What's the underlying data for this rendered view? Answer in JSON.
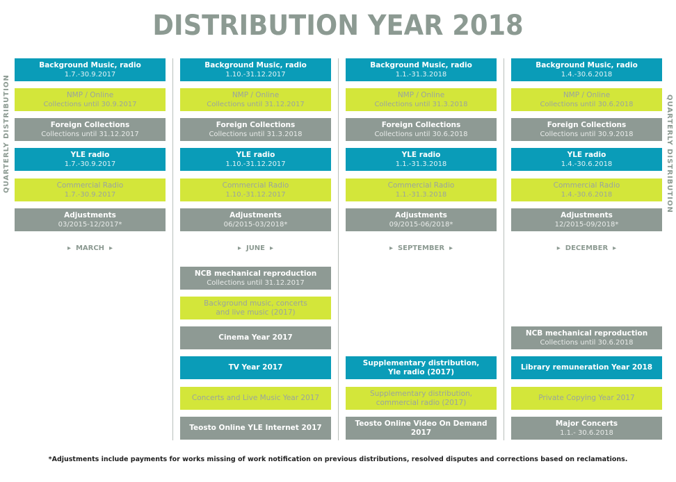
{
  "title": "DISTRIBUTION YEAR 2018",
  "side_label": "QUARTERLY DISTRIBUTION",
  "months": [
    "MARCH",
    "JUNE",
    "SEPTEMBER",
    "DECEMBER"
  ],
  "arrow": "▸",
  "colors": {
    "blue": "#0a9cb8",
    "lime": "#d3e63a",
    "grey": "#8e9a94",
    "title": "#8c9a92"
  },
  "columns": [
    {
      "quarterly": [
        {
          "t1": "Background Music, radio",
          "t2": "1.7.-30.9.2017"
        },
        {
          "t1": "NMP / Online",
          "t2": "Collections until 30.9.2017"
        },
        {
          "t1": "Foreign Collections",
          "t2": "Collections until 31.12.2017"
        },
        {
          "t1": "YLE radio",
          "t2": "1.7.-30.9.2017"
        },
        {
          "t1": "Commercial Radio",
          "t2": "1.7.-30.9.2017"
        },
        {
          "t1": "Adjustments",
          "t2": "03/2015-12/2017*"
        }
      ],
      "extra": []
    },
    {
      "quarterly": [
        {
          "t1": "Background Music, radio",
          "t2": "1.10.-31.12.2017"
        },
        {
          "t1": "NMP / Online",
          "t2": "Collections until 31.12.2017"
        },
        {
          "t1": "Foreign Collections",
          "t2": "Collections until 31.3.2018"
        },
        {
          "t1": "YLE radio",
          "t2": "1.10.-31.12.2017"
        },
        {
          "t1": "Commercial Radio",
          "t2": "1.10.-31.12.2017"
        },
        {
          "t1": "Adjustments",
          "t2": "06/2015-03/2018*"
        }
      ],
      "extra": [
        {
          "t1": "NCB mechanical reproduction",
          "t2": "Collections until 31.12.2017"
        },
        {
          "t1": "Background music, concerts",
          "t2": "and live music (2017)"
        },
        {
          "t1": "Cinema Year 2017",
          "t2": ""
        },
        {
          "t1": "TV Year 2017",
          "t2": ""
        },
        {
          "t1": "Concerts and Live Music Year 2017",
          "t2": ""
        },
        {
          "t1": "Teosto Online YLE Internet 2017",
          "t2": ""
        }
      ]
    },
    {
      "quarterly": [
        {
          "t1": "Background Music, radio",
          "t2": "1.1.-31.3.2018"
        },
        {
          "t1": "NMP / Online",
          "t2": "Collections until 31.3.2018"
        },
        {
          "t1": "Foreign Collections",
          "t2": "Collections until 30.6.2018"
        },
        {
          "t1": "YLE radio",
          "t2": "1.1.-31.3.2018"
        },
        {
          "t1": "Commercial Radio",
          "t2": "1.1.-31.3.2018"
        },
        {
          "t1": "Adjustments",
          "t2": "09/2015-06/2018*"
        }
      ],
      "extra": [
        {
          "t1": "Supplementary distribution,",
          "t2": "Yle radio (2017)"
        },
        {
          "t1": "Supplementary distribution,",
          "t2": "commercial radio (2017)"
        },
        {
          "t1": "Teosto Online Video On Demand 2017",
          "t2": ""
        }
      ]
    },
    {
      "quarterly": [
        {
          "t1": "Background Music, radio",
          "t2": "1.4.-30.6.2018"
        },
        {
          "t1": "NMP / Online",
          "t2": "Collections until 30.6.2018"
        },
        {
          "t1": "Foreign Collections",
          "t2": "Collections until 30.9.2018"
        },
        {
          "t1": "YLE radio",
          "t2": "1.4.-30.6.2018"
        },
        {
          "t1": "Commercial Radio",
          "t2": "1.4.-30.6.2018"
        },
        {
          "t1": "Adjustments",
          "t2": "12/2015-09/2018*"
        }
      ],
      "extra": [
        {
          "t1": "NCB mechanical reproduction",
          "t2": "Collections until 30.6.2018"
        },
        {
          "t1": "Library remuneration Year 2018",
          "t2": ""
        },
        {
          "t1": "Private Copying Year 2017",
          "t2": ""
        },
        {
          "t1": "Major Concerts",
          "t2": "1.1.- 30.6.2018"
        }
      ]
    }
  ],
  "footnote": "*Adjustments include payments for works missing of work notification on previous distributions, resolved disputes and corrections based on reclamations."
}
